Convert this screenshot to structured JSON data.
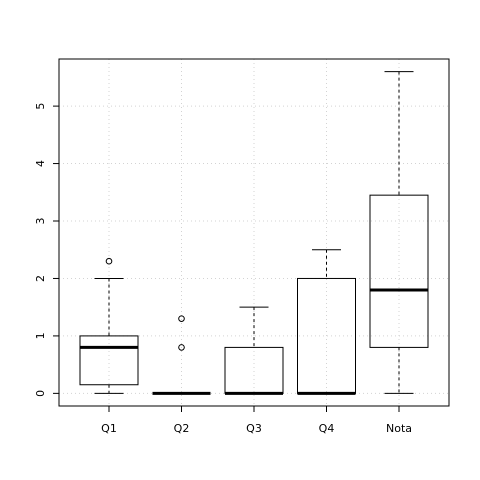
{
  "chart_data": {
    "type": "box",
    "categories": [
      "Q1",
      "Q2",
      "Q3",
      "Q4",
      "Nota"
    ],
    "series": [
      {
        "boxes": [
          {
            "category": "Q1",
            "whisker_low": 0.0,
            "q1": 0.15,
            "median": 0.8,
            "q3": 1.0,
            "whisker_high": 2.0,
            "outliers": [
              2.3
            ]
          },
          {
            "category": "Q2",
            "whisker_low": 0.0,
            "q1": 0.0,
            "median": 0.0,
            "q3": 0.0,
            "whisker_high": 0.0,
            "outliers": [
              0.8,
              1.3
            ]
          },
          {
            "category": "Q3",
            "whisker_low": 0.0,
            "q1": 0.0,
            "median": 0.0,
            "q3": 0.8,
            "whisker_high": 1.5,
            "outliers": []
          },
          {
            "category": "Q4",
            "whisker_low": 0.0,
            "q1": 0.0,
            "median": 0.0,
            "q3": 2.0,
            "whisker_high": 2.5,
            "outliers": []
          },
          {
            "category": "Nota",
            "whisker_low": 0.0,
            "q1": 0.8,
            "median": 1.8,
            "q3": 3.45,
            "whisker_high": 5.6,
            "outliers": []
          }
        ]
      }
    ],
    "yticks": [
      0,
      1,
      2,
      3,
      4,
      5
    ],
    "ylim": [
      -0.22,
      5.82
    ],
    "title": "",
    "xlabel": "",
    "ylabel": "",
    "grid": true
  }
}
